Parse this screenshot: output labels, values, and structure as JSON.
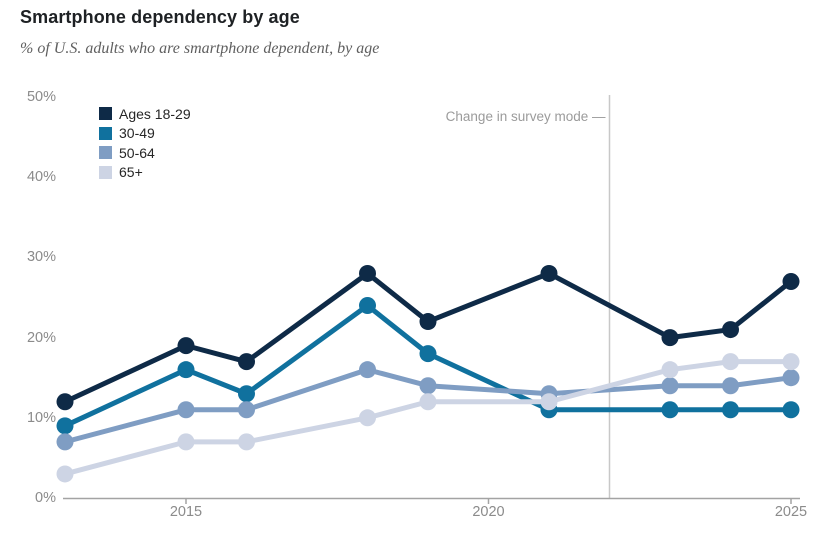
{
  "header": {
    "title": "Smartphone dependency by age",
    "subtitle": "% of U.S. adults who are smartphone dependent, by age"
  },
  "chart_data": {
    "type": "line",
    "x": [
      2013,
      2015,
      2016,
      2018,
      2019,
      2021,
      2023,
      2024,
      2025
    ],
    "xlim": [
      2013,
      2025
    ],
    "ylim": [
      0,
      50
    ],
    "series": [
      {
        "name": "Ages 18-29",
        "color": "#0e2a47",
        "values": [
          12,
          19,
          17,
          28,
          22,
          28,
          20,
          21,
          27
        ]
      },
      {
        "name": "30-49",
        "color": "#10719e",
        "values": [
          9,
          16,
          13,
          24,
          18,
          11,
          11,
          11,
          11
        ]
      },
      {
        "name": "50-64",
        "color": "#7f9dc3",
        "values": [
          7,
          11,
          11,
          16,
          14,
          13,
          14,
          14,
          15
        ]
      },
      {
        "name": "65+",
        "color": "#cdd4e4",
        "values": [
          3,
          7,
          7,
          10,
          12,
          12,
          16,
          17,
          17
        ]
      }
    ],
    "yticks": [
      {
        "value": 0,
        "label": "0%"
      },
      {
        "value": 10,
        "label": "10%"
      },
      {
        "value": 20,
        "label": "20%"
      },
      {
        "value": 30,
        "label": "30%"
      },
      {
        "value": 40,
        "label": "40%"
      },
      {
        "value": 50,
        "label": "50%"
      }
    ],
    "xticks": [
      {
        "value": 2015,
        "label": "2015"
      },
      {
        "value": 2020,
        "label": "2020"
      },
      {
        "value": 2025,
        "label": "2025"
      }
    ],
    "annotation": {
      "text": "Change in survey mode —",
      "x": 2022
    },
    "legend_position": "top-left",
    "grid": "off"
  },
  "colors": {
    "background": "#ffffff",
    "title": "#1e2124",
    "subtitle": "#5f5f5f",
    "legend_text": "#262626",
    "tick_label": "#8b8b8b",
    "axis_line": "#a3a3a3",
    "annotation_text": "#9b9b9b",
    "annotation_line": "#c8c8c8"
  }
}
